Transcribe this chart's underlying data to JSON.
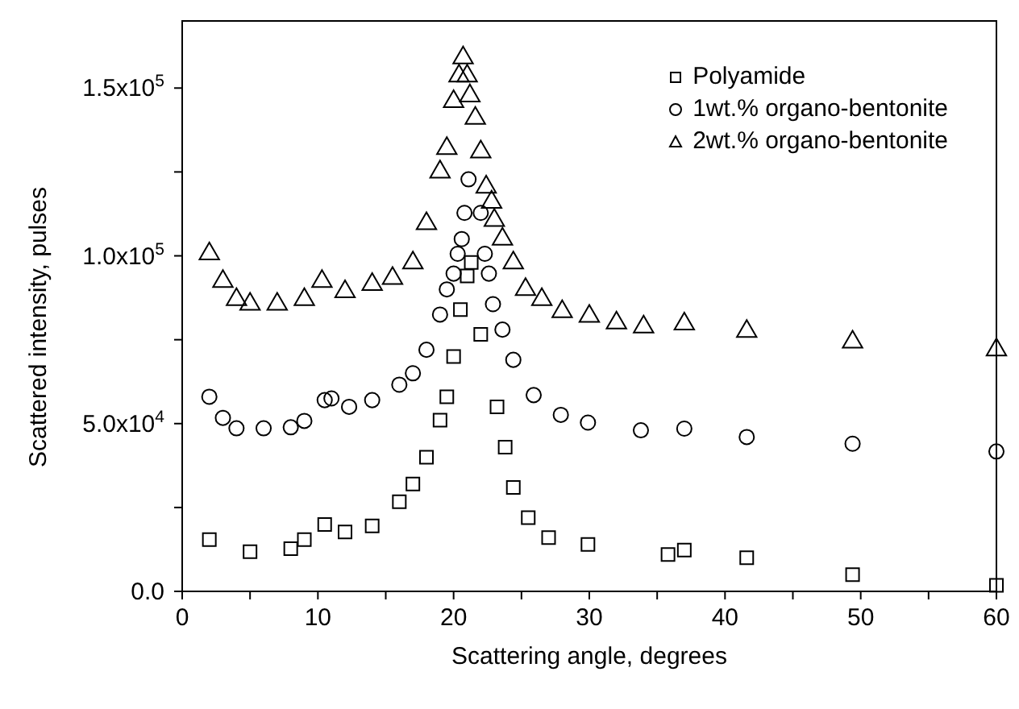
{
  "chart_data": {
    "type": "scatter",
    "xlabel": "Scattering angle, degrees",
    "ylabel": "Scattered intensity, pulses",
    "xlim": [
      0,
      60
    ],
    "ylim": [
      0,
      170000
    ],
    "xticks": [
      0,
      {
        "value": 5,
        "label": null
      },
      10,
      {
        "value": 15,
        "label": null
      },
      20,
      {
        "value": 25,
        "label": null
      },
      30,
      {
        "value": 35,
        "label": null
      },
      40,
      {
        "value": 45,
        "label": null
      },
      50,
      {
        "value": 55,
        "label": null
      },
      60
    ],
    "yticks": [
      {
        "value": 0,
        "label": "0.0"
      },
      {
        "value": 25000,
        "label": null
      },
      {
        "value": 50000,
        "label": "5.0x10$^{4}$"
      },
      {
        "value": 75000,
        "label": null
      },
      {
        "value": 100000,
        "label": "1.0x10$^{5}$"
      },
      {
        "value": 125000,
        "label": null
      },
      {
        "value": 150000,
        "label": "1.5x10$^{5}$"
      }
    ],
    "legend": "top right",
    "grid": false,
    "series": [
      {
        "name": "Polyamide",
        "color": "#000000",
        "marker": "square",
        "x": [
          2,
          5,
          8,
          9,
          10.5,
          12,
          14,
          16,
          17,
          18,
          19,
          19.5,
          20,
          20.5,
          21,
          21.3,
          22,
          23.2,
          23.8,
          24.4,
          25.5,
          27,
          29.9,
          35.8,
          37,
          41.6,
          49.4,
          60
        ],
        "values": [
          15400,
          11800,
          12700,
          15400,
          19900,
          17700,
          19500,
          26700,
          32000,
          40000,
          51000,
          58000,
          70000,
          84000,
          94000,
          98000,
          76600,
          55000,
          43000,
          31000,
          22000,
          16000,
          14000,
          11000,
          12300,
          10000,
          5000,
          1800
        ]
      },
      {
        "name": "1wt.% organo-bentonite",
        "color": "#000000",
        "marker": "circle",
        "x": [
          2,
          3,
          4,
          6,
          8,
          9,
          10.5,
          11,
          12.3,
          14,
          16,
          17,
          18,
          19,
          19.5,
          20,
          20.3,
          20.6,
          20.8,
          21.1,
          22,
          22.3,
          22.6,
          22.9,
          23.6,
          24.4,
          25.9,
          27.9,
          29.9,
          33.8,
          37,
          41.6,
          49.4,
          60
        ],
        "values": [
          58000,
          51700,
          48600,
          48600,
          48900,
          50800,
          57000,
          57500,
          55000,
          57000,
          61600,
          65000,
          72000,
          82500,
          90000,
          94700,
          100600,
          105000,
          112800,
          122800,
          112800,
          100600,
          94700,
          85600,
          78000,
          69000,
          58500,
          52600,
          50300,
          48000,
          48500,
          46000,
          44000,
          41700
        ]
      },
      {
        "name": "2wt.% organo-bentonite",
        "color": "#000000",
        "marker": "triangle",
        "x": [
          2,
          3,
          4,
          5,
          7,
          9,
          10.3,
          12,
          14,
          15.5,
          17,
          18,
          19,
          19.5,
          20,
          20.4,
          20.7,
          21,
          21.2,
          21.6,
          22,
          22.4,
          22.8,
          23,
          23.6,
          24.4,
          25.3,
          26.5,
          28,
          30,
          32,
          34,
          37,
          41.6,
          49.4,
          60
        ],
        "values": [
          100600,
          92400,
          87000,
          85600,
          85600,
          87000,
          92400,
          89300,
          91500,
          93300,
          97900,
          109600,
          125000,
          132000,
          146000,
          153600,
          159000,
          153600,
          147700,
          141000,
          131000,
          120500,
          116000,
          110600,
          105000,
          97900,
          90000,
          87000,
          83400,
          82000,
          80000,
          78800,
          79700,
          77500,
          74300,
          72000
        ]
      }
    ]
  }
}
